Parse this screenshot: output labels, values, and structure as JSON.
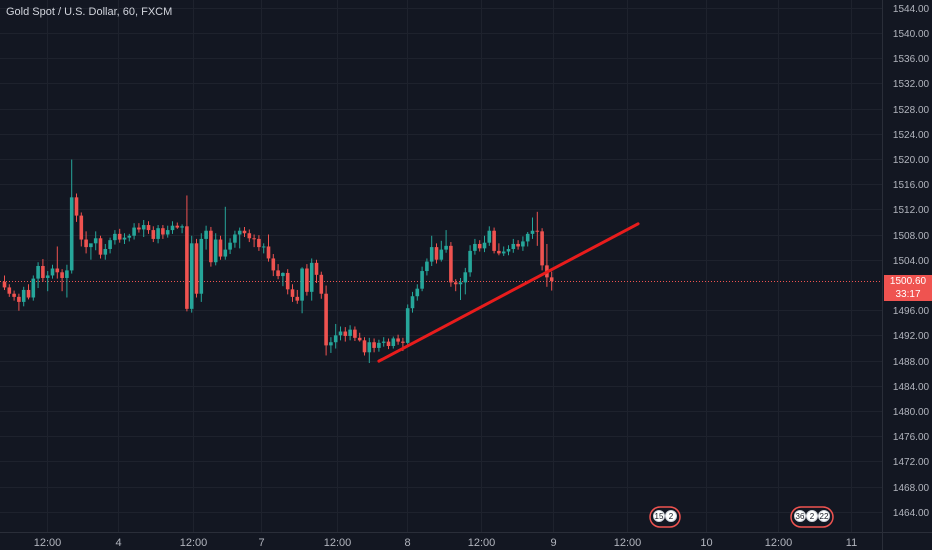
{
  "header": {
    "symbol": "Gold Spot / U.S. Dollar, 60, FXCM"
  },
  "price_scale": {
    "current_price": "1500.60",
    "countdown": "33:17"
  },
  "colors": {
    "background": "#131722",
    "grid": "#1e222d",
    "up_candle": "#26a69a",
    "down_candle": "#ef5350",
    "trendline": "#e81c1c",
    "price_line": "#ef5350",
    "axis_text": "#b2b5be"
  },
  "event_badges": [
    {
      "group": "near-10",
      "counts": [
        "15",
        "2"
      ]
    },
    {
      "group": "near-11",
      "counts": [
        "36",
        "2",
        "22"
      ]
    }
  ],
  "chart_data": {
    "type": "candlestick",
    "title": "Gold Spot / U.S. Dollar, 60, FXCM",
    "y_axis_ticks": [
      "1544.00",
      "1540.00",
      "1536.00",
      "1532.00",
      "1528.00",
      "1524.00",
      "1520.00",
      "1516.00",
      "1512.00",
      "1508.00",
      "1504.00",
      "1496.00",
      "1492.00",
      "1488.00",
      "1484.00",
      "1480.00",
      "1476.00",
      "1472.00",
      "1468.00",
      "1464.00"
    ],
    "x_axis_ticks": [
      "12:00",
      "4",
      "12:00",
      "7",
      "12:00",
      "8",
      "12:00",
      "9",
      "12:00",
      "10",
      "12:00",
      "11"
    ],
    "ylim": [
      1461,
      1547
    ],
    "grid": true,
    "last_price": 1500.6,
    "candles": [
      [
        1500.5,
        1501.5,
        1499.2,
        1499.6
      ],
      [
        1499.6,
        1500.1,
        1498.1,
        1498.6
      ],
      [
        1498.6,
        1499.1,
        1497.5,
        1498.1
      ],
      [
        1498.1,
        1498.6,
        1495.9,
        1497.3
      ],
      [
        1497.3,
        1499.7,
        1496.6,
        1499.2
      ],
      [
        1499.2,
        1500.1,
        1497.7,
        1498.0
      ],
      [
        1498.0,
        1501.5,
        1497.5,
        1501.0
      ],
      [
        1501.0,
        1503.6,
        1499.5,
        1503.0
      ],
      [
        1503.0,
        1504.1,
        1500.5,
        1501.1
      ],
      [
        1501.1,
        1502.2,
        1499.0,
        1501.5
      ],
      [
        1501.5,
        1503.2,
        1501.0,
        1502.6
      ],
      [
        1502.6,
        1506.1,
        1501.0,
        1502.0
      ],
      [
        1502.0,
        1502.5,
        1499.0,
        1501.1
      ],
      [
        1501.1,
        1503.2,
        1498.0,
        1502.3
      ],
      [
        1502.3,
        1519.9,
        1501.8,
        1513.9
      ],
      [
        1513.9,
        1514.5,
        1510.0,
        1511.0
      ],
      [
        1511.0,
        1511.5,
        1506.1,
        1507.2
      ],
      [
        1507.2,
        1508.5,
        1505.0,
        1506.0
      ],
      [
        1506.0,
        1506.5,
        1504.0,
        1506.6
      ],
      [
        1506.6,
        1508.5,
        1505.5,
        1507.4
      ],
      [
        1507.4,
        1507.8,
        1504.2,
        1504.8
      ],
      [
        1504.8,
        1506.5,
        1504.0,
        1505.7
      ],
      [
        1505.7,
        1507.5,
        1505.0,
        1507.1
      ],
      [
        1507.1,
        1508.7,
        1506.4,
        1508.1
      ],
      [
        1508.1,
        1508.9,
        1506.7,
        1507.2
      ],
      [
        1507.2,
        1508.2,
        1506.5,
        1507.5
      ],
      [
        1507.5,
        1508.1,
        1506.9,
        1507.8
      ],
      [
        1507.8,
        1509.8,
        1507.2,
        1509.1
      ],
      [
        1509.1,
        1509.8,
        1508.3,
        1508.8
      ],
      [
        1508.8,
        1510.3,
        1507.6,
        1509.5
      ],
      [
        1509.5,
        1510.1,
        1508.1,
        1508.7
      ],
      [
        1508.7,
        1509.3,
        1506.8,
        1507.3
      ],
      [
        1507.3,
        1509.5,
        1506.6,
        1509.0
      ],
      [
        1509.0,
        1509.5,
        1507.3,
        1508.0
      ],
      [
        1508.0,
        1509.4,
        1507.5,
        1508.7
      ],
      [
        1508.7,
        1510.1,
        1508.1,
        1509.4
      ],
      [
        1509.4,
        1509.9,
        1508.9,
        1509.1
      ],
      [
        1509.1,
        1509.6,
        1508.2,
        1509.3
      ],
      [
        1509.3,
        1514.2,
        1495.8,
        1496.2
      ],
      [
        1496.2,
        1507.8,
        1495.6,
        1506.6
      ],
      [
        1506.6,
        1507.3,
        1498.0,
        1498.6
      ],
      [
        1498.6,
        1508.2,
        1497.3,
        1507.3
      ],
      [
        1507.3,
        1509.4,
        1505.6,
        1508.6
      ],
      [
        1508.6,
        1509.2,
        1502.9,
        1503.6
      ],
      [
        1503.6,
        1508.2,
        1503.1,
        1507.2
      ],
      [
        1507.2,
        1507.8,
        1504.0,
        1504.5
      ],
      [
        1504.5,
        1512.4,
        1504.0,
        1505.6
      ],
      [
        1505.6,
        1507.4,
        1504.9,
        1506.7
      ],
      [
        1506.7,
        1508.6,
        1505.9,
        1508.0
      ],
      [
        1508.0,
        1509.1,
        1505.8,
        1508.6
      ],
      [
        1508.6,
        1509.2,
        1507.6,
        1508.2
      ],
      [
        1508.2,
        1508.8,
        1506.8,
        1507.4
      ],
      [
        1507.4,
        1508.0,
        1506.0,
        1507.3
      ],
      [
        1507.3,
        1507.9,
        1505.4,
        1506.0
      ],
      [
        1506.0,
        1506.6,
        1505.0,
        1506.1
      ],
      [
        1506.1,
        1508.0,
        1503.7,
        1504.2
      ],
      [
        1504.2,
        1504.9,
        1501.4,
        1502.3
      ],
      [
        1502.3,
        1503.3,
        1500.9,
        1501.4
      ],
      [
        1501.4,
        1502.0,
        1499.8,
        1501.9
      ],
      [
        1501.9,
        1502.5,
        1498.5,
        1499.3
      ],
      [
        1499.3,
        1500.1,
        1497.3,
        1498.1
      ],
      [
        1498.1,
        1499.2,
        1497.0,
        1497.5
      ],
      [
        1497.5,
        1502.8,
        1495.5,
        1502.6
      ],
      [
        1502.6,
        1503.3,
        1498.3,
        1498.9
      ],
      [
        1498.9,
        1504.2,
        1497.5,
        1503.5
      ],
      [
        1503.5,
        1504.0,
        1500.3,
        1501.6
      ],
      [
        1501.6,
        1502.1,
        1497.8,
        1498.6
      ],
      [
        1498.6,
        1499.9,
        1488.8,
        1490.4
      ],
      [
        1490.4,
        1491.7,
        1489.2,
        1490.9
      ],
      [
        1490.9,
        1493.8,
        1489.9,
        1492.0
      ],
      [
        1492.0,
        1493.4,
        1491.2,
        1492.6
      ],
      [
        1492.6,
        1493.3,
        1491.0,
        1491.9
      ],
      [
        1491.9,
        1493.6,
        1491.2,
        1492.9
      ],
      [
        1492.9,
        1493.4,
        1491.1,
        1491.6
      ],
      [
        1491.6,
        1492.4,
        1491.0,
        1491.2
      ],
      [
        1491.2,
        1491.7,
        1488.8,
        1489.3
      ],
      [
        1489.3,
        1491.6,
        1487.6,
        1490.9
      ],
      [
        1490.9,
        1491.5,
        1489.3,
        1490.0
      ],
      [
        1490.0,
        1491.3,
        1489.4,
        1490.8
      ],
      [
        1490.8,
        1491.7,
        1490.2,
        1491.0
      ],
      [
        1491.0,
        1491.5,
        1489.8,
        1490.3
      ],
      [
        1490.3,
        1491.8,
        1489.9,
        1491.5
      ],
      [
        1491.5,
        1492.1,
        1490.5,
        1491.0
      ],
      [
        1491.0,
        1491.6,
        1489.5,
        1490.8
      ],
      [
        1490.8,
        1496.9,
        1490.3,
        1496.3
      ],
      [
        1496.3,
        1498.9,
        1495.6,
        1498.2
      ],
      [
        1498.2,
        1500.1,
        1497.5,
        1499.4
      ],
      [
        1499.4,
        1502.9,
        1499.0,
        1502.2
      ],
      [
        1502.2,
        1504.2,
        1501.5,
        1503.7
      ],
      [
        1503.7,
        1507.8,
        1503.0,
        1506.0
      ],
      [
        1506.0,
        1506.6,
        1503.4,
        1504.0
      ],
      [
        1504.0,
        1507.0,
        1503.7,
        1505.6
      ],
      [
        1505.6,
        1508.7,
        1505.1,
        1506.2
      ],
      [
        1506.2,
        1506.8,
        1499.7,
        1500.4
      ],
      [
        1500.4,
        1500.9,
        1499.0,
        1500.1
      ],
      [
        1500.1,
        1501.1,
        1497.6,
        1500.4
      ],
      [
        1500.4,
        1502.7,
        1498.5,
        1502.0
      ],
      [
        1502.0,
        1506.3,
        1501.3,
        1505.4
      ],
      [
        1505.4,
        1507.3,
        1504.8,
        1506.5
      ],
      [
        1506.5,
        1507.1,
        1505.3,
        1505.8
      ],
      [
        1505.8,
        1507.8,
        1505.2,
        1506.7
      ],
      [
        1506.7,
        1509.3,
        1506.2,
        1508.6
      ],
      [
        1508.6,
        1509.1,
        1505.0,
        1505.4
      ],
      [
        1505.4,
        1506.6,
        1504.7,
        1505.0
      ],
      [
        1505.0,
        1506.1,
        1504.6,
        1505.3
      ],
      [
        1505.3,
        1506.3,
        1504.7,
        1505.7
      ],
      [
        1505.7,
        1507.3,
        1505.1,
        1506.5
      ],
      [
        1506.5,
        1507.1,
        1505.6,
        1506.1
      ],
      [
        1506.1,
        1507.7,
        1505.4,
        1506.9
      ],
      [
        1506.9,
        1508.4,
        1506.1,
        1508.1
      ],
      [
        1508.1,
        1510.7,
        1507.3,
        1508.6
      ],
      [
        1508.6,
        1511.6,
        1506.2,
        1508.5
      ],
      [
        1508.5,
        1509.0,
        1502.3,
        1503.1
      ],
      [
        1503.1,
        1506.5,
        1499.7,
        1501.2
      ],
      [
        1501.2,
        1502.1,
        1499.1,
        1500.6
      ]
    ],
    "trendline": {
      "from": {
        "candle": 78,
        "price": 1487.9
      },
      "to": {
        "candle": 132,
        "price": 1509.7
      }
    }
  }
}
